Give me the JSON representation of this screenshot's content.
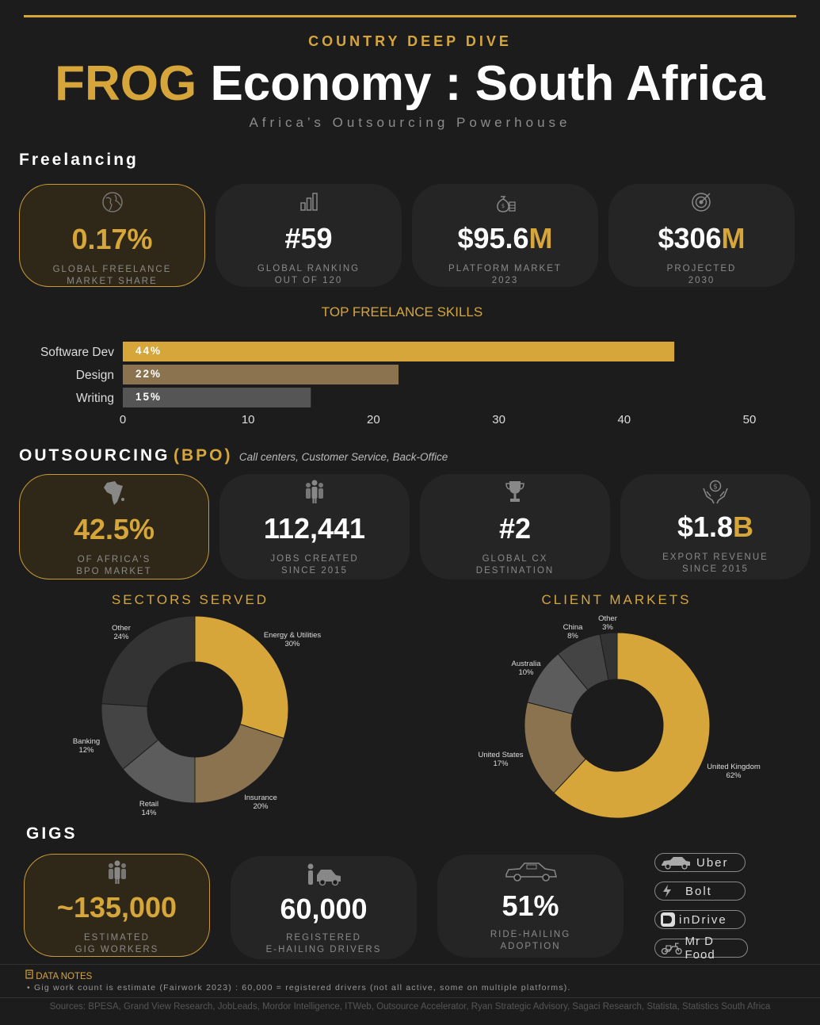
{
  "header": {
    "kicker": "COUNTRY DEEP DIVE",
    "title_accent": "FROG",
    "title_rest": "Economy : South Africa",
    "subtitle": "Africa’s Outsourcing Powerhouse"
  },
  "freelancing": {
    "heading": "Freelancing",
    "cards": [
      {
        "value": "0.17%",
        "label1": "GLOBAL FREELANCE",
        "label2": "MARKET SHARE",
        "icon": "globe-icon"
      },
      {
        "value": "#59",
        "label1": "GLOBAL RANKING",
        "label2": "OUT OF 120",
        "icon": "bar-chart-icon"
      },
      {
        "value_main": "$95.6",
        "value_suffix": "M",
        "label1": "PLATFORM MARKET",
        "label2": "2023",
        "icon": "money-bag-icon"
      },
      {
        "value_main": "$306",
        "value_suffix": "M",
        "label1": "PROJECTED",
        "label2": "2030",
        "icon": "target-icon"
      }
    ]
  },
  "chart_data": {
    "type": "bar",
    "orientation": "horizontal",
    "title": "TOP FREELANCE SKILLS",
    "categories": [
      "Software Dev",
      "Design",
      "Writing"
    ],
    "values": [
      44,
      22,
      15
    ],
    "data_labels": [
      "44%",
      "22%",
      "15%"
    ],
    "colors": [
      "#d6a63a",
      "#8c7350",
      "#555555"
    ],
    "xlim": [
      0,
      50
    ],
    "xticks": [
      0,
      10,
      20,
      30,
      40,
      50
    ]
  },
  "outsourcing": {
    "heading_main": "OUTSOURCING",
    "heading_accent": "(BPO)",
    "heading_note": "Call centers, Customer Service, Back-Office",
    "cards": [
      {
        "value": "42.5%",
        "label1": "OF AFRICA'S",
        "label2": "BPO MARKET",
        "icon": "africa-icon"
      },
      {
        "value": "112,441",
        "label1": "JOBS CREATED",
        "label2": "SINCE 2015",
        "icon": "people-icon"
      },
      {
        "value": "#2",
        "label1": "GLOBAL CX",
        "label2": "DESTINATION",
        "icon": "trophy-icon"
      },
      {
        "value_main": "$1.8",
        "value_suffix": "B",
        "label1": "EXPORT REVENUE",
        "label2": "SINCE 2015",
        "icon": "hands-coin-icon"
      }
    ]
  },
  "sectors": {
    "title": "SECTORS SERVED",
    "slices": [
      {
        "name": "Energy & Utilities",
        "pct": "30%",
        "value": 30,
        "color": "#d6a63a"
      },
      {
        "name": "Insurance",
        "pct": "20%",
        "value": 20,
        "color": "#8c7350"
      },
      {
        "name": "Retail",
        "pct": "14%",
        "value": 14,
        "color": "#5c5c5c"
      },
      {
        "name": "Banking",
        "pct": "12%",
        "value": 12,
        "color": "#444444"
      },
      {
        "name": "Other",
        "pct": "24%",
        "value": 24,
        "color": "#333333"
      }
    ]
  },
  "markets": {
    "title": "CLIENT MARKETS",
    "slices": [
      {
        "name": "United Kingdom",
        "pct": "62%",
        "value": 62,
        "color": "#d6a63a"
      },
      {
        "name": "United States",
        "pct": "17%",
        "value": 17,
        "color": "#8c7350"
      },
      {
        "name": "Australia",
        "pct": "10%",
        "value": 10,
        "color": "#5c5c5c"
      },
      {
        "name": "China",
        "pct": "8%",
        "value": 8,
        "color": "#444444"
      },
      {
        "name": "Other",
        "pct": "3%",
        "value": 3,
        "color": "#333333"
      }
    ]
  },
  "gigs": {
    "heading": "GIGS",
    "cards": [
      {
        "value": "~135,000",
        "label1": "ESTIMATED",
        "label2": "GIG WORKERS",
        "icon": "people-icon"
      },
      {
        "value": "60,000",
        "label1": "REGISTERED",
        "label2": "E-HAILING DRIVERS",
        "icon": "driver-car-icon"
      },
      {
        "value": "51%",
        "label1": "RIDE-HAILING",
        "label2": "ADOPTION",
        "icon": "taxi-icon"
      }
    ],
    "platforms": [
      {
        "name": "Uber",
        "icon": "car-icon"
      },
      {
        "name": "Bolt",
        "icon": "bolt-icon"
      },
      {
        "name": "inDrive",
        "icon": "indrive-icon"
      },
      {
        "name": "Mr D Food",
        "icon": "scooter-icon"
      }
    ]
  },
  "notes": {
    "title": "DATA NOTES",
    "text": "• Gig work count is estimate (Fairwork 2023) : 60,000 = registered drivers (not all active, some on multiple platforms)."
  },
  "sources": "Sources: BPESA, Grand View Research, JobLeads, Mordor Intelligence, ITWeb, Outsource Accelerator, Ryan Strategic Advisory, Sagaci Research, Statista, Statistics South Africa"
}
